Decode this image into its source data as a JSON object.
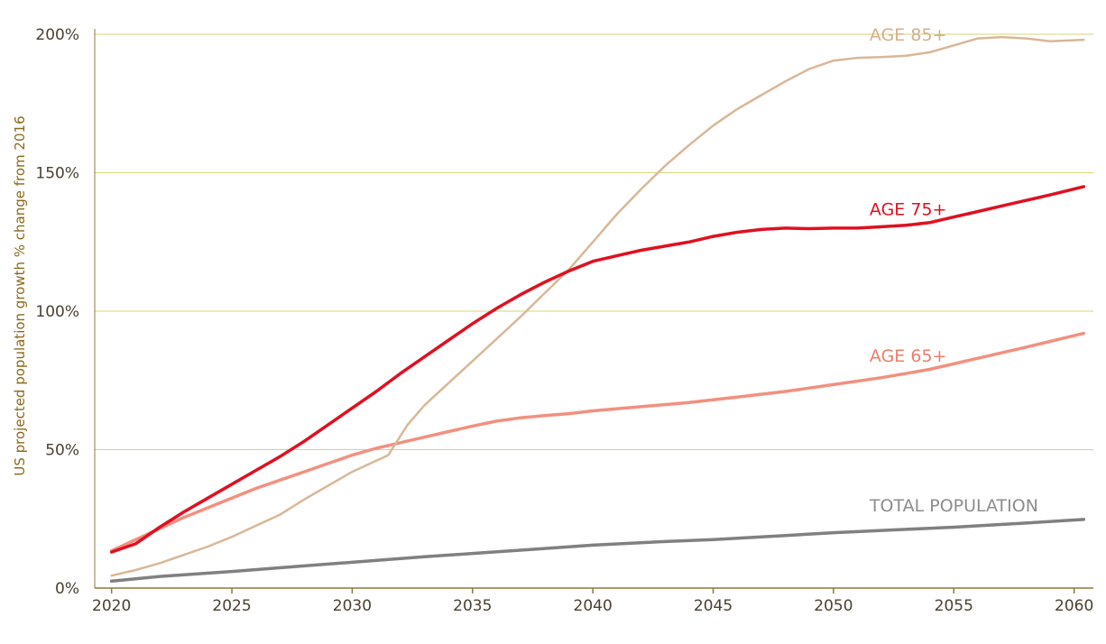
{
  "chart_data": {
    "type": "line",
    "title": "",
    "xlabel": "",
    "ylabel": "US projected population growth % change from 2016",
    "xlim": [
      2019.3,
      2060.8
    ],
    "ylim": [
      0,
      200
    ],
    "x_ticks": [
      2020,
      2025,
      2030,
      2035,
      2040,
      2045,
      2050,
      2055,
      2060
    ],
    "x_tick_labels": [
      "2020",
      "2025",
      "2030",
      "2035",
      "2040",
      "2045",
      "2050",
      "2055",
      "2060"
    ],
    "y_ticks": [
      0,
      50,
      100,
      150,
      200
    ],
    "y_tick_labels": [
      "0%",
      "50%",
      "100%",
      "150%",
      "200%"
    ],
    "grid": "horizontal",
    "grid_color": "#d8d47a",
    "axis_color": "#8a7a3a",
    "series": [
      {
        "name": "TOTAL POPULATION",
        "color": "#808080",
        "label_color": "#8c8c8c",
        "x": [
          2020,
          2022,
          2025,
          2028,
          2030,
          2033,
          2035,
          2038,
          2040,
          2043,
          2045,
          2048,
          2050,
          2053,
          2055,
          2058,
          2060.4
        ],
        "y": [
          2.5,
          4.2,
          6.0,
          8.0,
          9.3,
          11.3,
          12.5,
          14.3,
          15.5,
          16.8,
          17.5,
          19.0,
          20.0,
          21.2,
          22.0,
          23.5,
          24.8
        ]
      },
      {
        "name": "AGE 65+",
        "color": "#f29080",
        "label_color": "#f07c6a",
        "x": [
          2020,
          2021,
          2022,
          2023,
          2024,
          2025,
          2026,
          2027,
          2028,
          2029,
          2030,
          2031,
          2032,
          2033,
          2034,
          2035,
          2036,
          2037,
          2038,
          2039,
          2040,
          2042,
          2044,
          2046,
          2048,
          2050,
          2052,
          2054,
          2056,
          2058,
          2060.4
        ],
        "y": [
          13.5,
          17.5,
          21.5,
          25.5,
          29.0,
          32.5,
          36.0,
          39.0,
          42.0,
          45.0,
          48.0,
          50.5,
          52.5,
          54.5,
          56.5,
          58.5,
          60.3,
          61.5,
          62.3,
          63.0,
          64.0,
          65.5,
          67.0,
          69.0,
          71.0,
          73.5,
          76.0,
          79.0,
          83.0,
          87.0,
          92.0
        ]
      },
      {
        "name": "AGE 85+",
        "color": "#d8b898",
        "label_color": "#d4b08a",
        "x": [
          2020,
          2021,
          2022,
          2023,
          2024,
          2025,
          2026,
          2027,
          2028,
          2029,
          2030,
          2031,
          2031.5,
          2032.3,
          2033,
          2034,
          2035,
          2036,
          2037,
          2038,
          2039,
          2040,
          2041,
          2042,
          2043,
          2044,
          2045,
          2046,
          2047,
          2048,
          2049,
          2050,
          2051,
          2052,
          2053,
          2054,
          2055,
          2056,
          2057,
          2058,
          2059,
          2060.4
        ],
        "y": [
          4.5,
          6.5,
          9.0,
          12.0,
          15.0,
          18.5,
          22.5,
          26.5,
          32.0,
          37.0,
          42.0,
          46.0,
          48.0,
          59.0,
          66.0,
          74.0,
          82.0,
          90.0,
          98.0,
          106.5,
          115.0,
          125.0,
          135.0,
          144.0,
          152.5,
          160.0,
          167.0,
          173.0,
          178.0,
          183.0,
          187.5,
          190.5,
          191.5,
          191.8,
          192.2,
          193.5,
          196.0,
          198.5,
          199.0,
          198.5,
          197.5,
          198.0
        ]
      },
      {
        "name": "AGE 75+",
        "color": "#e01020",
        "label_color": "#e01020",
        "x": [
          2020,
          2021,
          2022,
          2023,
          2024,
          2025,
          2026,
          2027,
          2028,
          2029,
          2030,
          2031,
          2032,
          2033,
          2034,
          2035,
          2036,
          2037,
          2038,
          2039,
          2040,
          2041,
          2042,
          2043,
          2044,
          2045,
          2046,
          2047,
          2048,
          2049,
          2050,
          2051,
          2052,
          2053,
          2054,
          2055,
          2056,
          2057,
          2058,
          2059,
          2060.4
        ],
        "y": [
          13.0,
          16.0,
          22.0,
          27.5,
          32.5,
          37.5,
          42.5,
          47.5,
          53.0,
          59.0,
          65.0,
          71.0,
          77.5,
          83.5,
          89.5,
          95.5,
          101.0,
          106.0,
          110.5,
          114.5,
          118.0,
          120.0,
          122.0,
          123.5,
          125.0,
          127.0,
          128.5,
          129.5,
          130.0,
          129.8,
          130.0,
          130.0,
          130.5,
          131.0,
          132.0,
          134.0,
          136.0,
          138.0,
          140.0,
          142.0,
          145.0
        ]
      }
    ],
    "annotations": [
      {
        "text": "AGE 85+",
        "series": "AGE 85+",
        "x": 2051.5,
        "y": 200
      },
      {
        "text": "AGE 75+",
        "series": "AGE 75+",
        "x": 2051.5,
        "y": 137
      },
      {
        "text": "AGE 65+",
        "series": "AGE 65+",
        "x": 2051.5,
        "y": 84
      },
      {
        "text": "TOTAL POPULATION",
        "series": "TOTAL POPULATION",
        "x": 2051.5,
        "y": 30
      }
    ]
  }
}
